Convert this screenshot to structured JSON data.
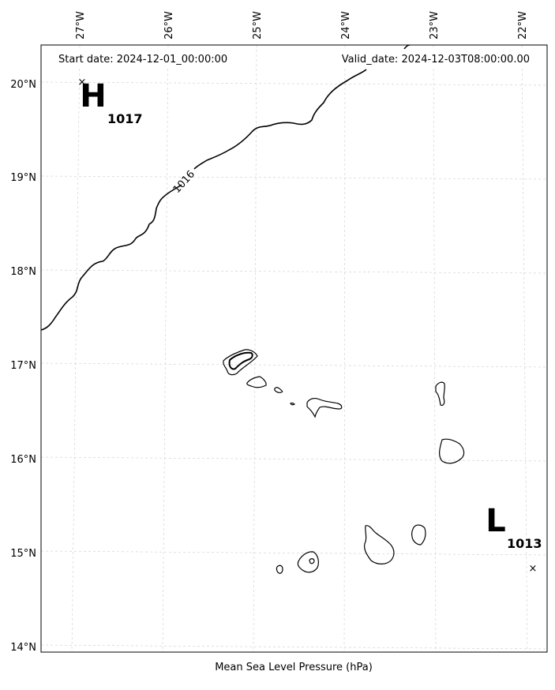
{
  "header": {
    "start_date": "Start date: 2024-12-01_00:00:00",
    "valid_date": "Valid_date: 2024-12-03T08:00:00.00"
  },
  "footer": {
    "caption": "Mean Sea Level Pressure (hPa)"
  },
  "axes": {
    "longitude_labels": [
      "27°W",
      "26°W",
      "25°W",
      "24°W",
      "23°W",
      "22°W"
    ],
    "latitude_labels": [
      "20°N",
      "19°N",
      "18°N",
      "17°N",
      "16°N",
      "15°N",
      "14°N"
    ]
  },
  "contour": {
    "label": "1016"
  },
  "pressure_centers": [
    {
      "letter": "H",
      "value": "1017"
    },
    {
      "letter": "L",
      "value": "1013"
    }
  ],
  "colors": {
    "coastline": "#000000",
    "contour": "#000000",
    "gridline": "#cccccc"
  }
}
